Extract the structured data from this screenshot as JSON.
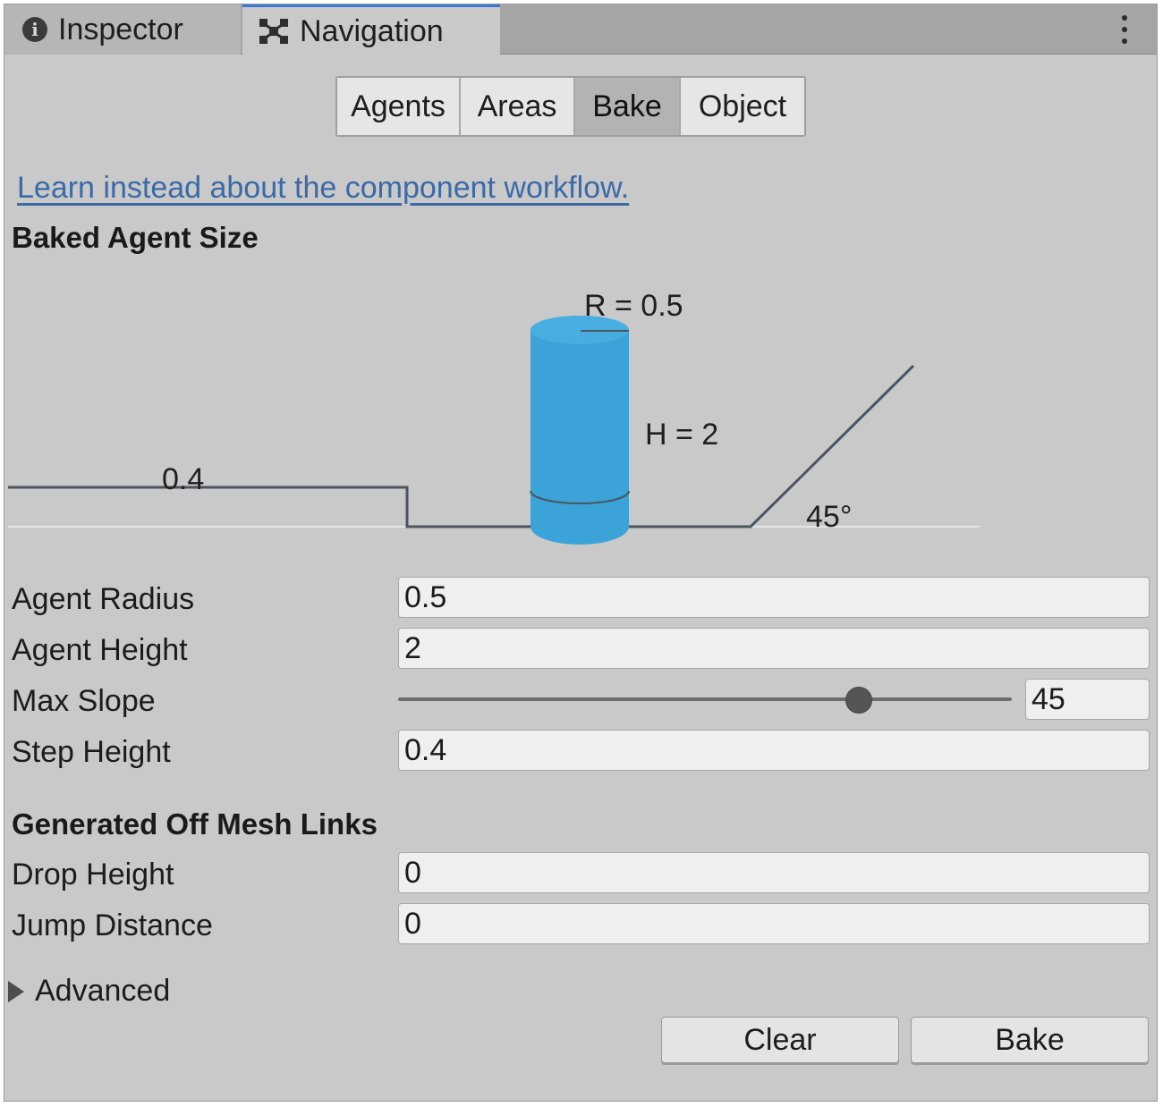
{
  "tabs": {
    "inspector": "Inspector",
    "navigation": "Navigation"
  },
  "icons": {
    "inspector": "info-icon",
    "navigation": "navigation-icon",
    "menu": "kebab-menu-icon",
    "advanced": "triangle-right-icon"
  },
  "subtabs": [
    "Agents",
    "Areas",
    "Bake",
    "Object"
  ],
  "active_subtab": "Bake",
  "link_text": "Learn instead about the component workflow.",
  "sections": {
    "baked_agent_size": "Baked Agent Size",
    "off_mesh_links": "Generated Off Mesh Links"
  },
  "diagram": {
    "radius_label": "R = 0.5",
    "height_label": "H = 2",
    "step_label": "0.4",
    "slope_label": "45°",
    "agent_color": "#3ba3d8"
  },
  "fields": {
    "agent_radius": {
      "label": "Agent Radius",
      "value": "0.5"
    },
    "agent_height": {
      "label": "Agent Height",
      "value": "2"
    },
    "max_slope": {
      "label": "Max Slope",
      "value": "45",
      "range": [
        0,
        60
      ]
    },
    "step_height": {
      "label": "Step Height",
      "value": "0.4"
    },
    "drop_height": {
      "label": "Drop Height",
      "value": "0"
    },
    "jump_distance": {
      "label": "Jump Distance",
      "value": "0"
    }
  },
  "advanced_label": "Advanced",
  "buttons": {
    "clear": "Clear",
    "bake": "Bake"
  },
  "colors": {
    "active_tab_accent": "#3a79d8",
    "link": "#3a6aa8",
    "panel_bg": "#c9c9c9"
  }
}
